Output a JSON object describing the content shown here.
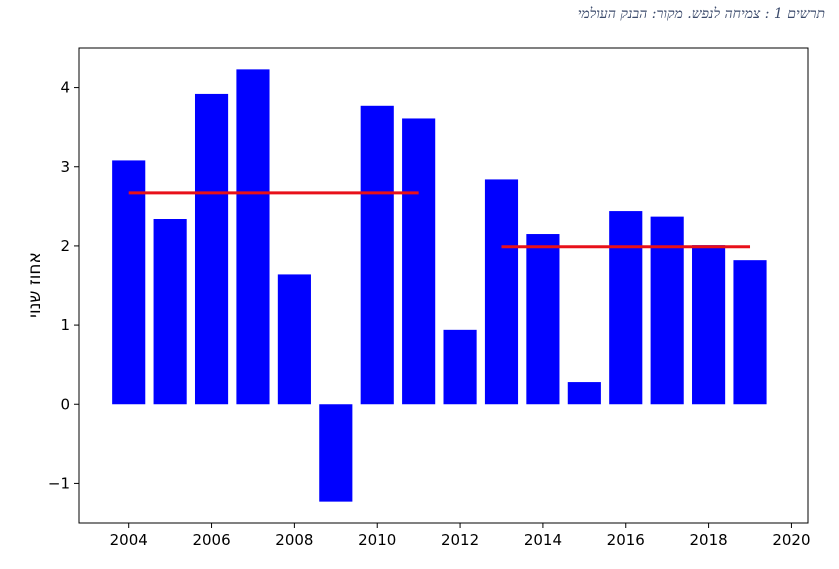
{
  "caption": "תרשים 1 : צמיחה לנפש. מקור: הבנק העולמי",
  "colors": {
    "bars": "#0000ff",
    "average_lines": "#e8101a"
  },
  "chart_data": {
    "type": "bar",
    "title": "תרשים 1 : צמיחה לנפש. מקור: הבנק העולמי",
    "xlabel": "",
    "ylabel": "אחוז שנוי",
    "x": [
      2004,
      2005,
      2006,
      2007,
      2008,
      2009,
      2010,
      2011,
      2012,
      2013,
      2014,
      2015,
      2016,
      2017,
      2018,
      2019
    ],
    "values": [
      3.08,
      2.34,
      3.92,
      4.23,
      1.64,
      -1.23,
      3.77,
      3.61,
      0.94,
      2.84,
      2.15,
      0.28,
      2.44,
      2.37,
      2.01,
      1.82
    ],
    "xlim": [
      2002.8,
      2020.4
    ],
    "ylim": [
      -1.5,
      4.5
    ],
    "xticks": [
      2004,
      2006,
      2008,
      2010,
      2012,
      2014,
      2016,
      2018,
      2020
    ],
    "yticks": [
      -1,
      0,
      1,
      2,
      3,
      4
    ],
    "average_lines": [
      {
        "x_start": 2004,
        "x_end": 2011,
        "y": 2.67
      },
      {
        "x_start": 2013,
        "x_end": 2019,
        "y": 1.99
      }
    ],
    "grid": false,
    "legend": "none"
  }
}
